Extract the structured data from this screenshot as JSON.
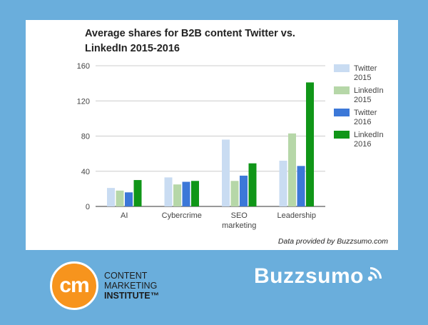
{
  "chart_data": {
    "type": "bar",
    "title": "Average shares for B2B content Twitter vs. LinkedIn 2015-2016",
    "title_lines": [
      "Average shares for B2B content Twitter vs.",
      "LinkedIn 2015-2016"
    ],
    "categories": [
      "AI",
      "Cybercrime",
      "SEO marketing",
      "Leadership"
    ],
    "category_lines": [
      [
        "AI"
      ],
      [
        "Cybercrime"
      ],
      [
        "SEO",
        "marketing"
      ],
      [
        "Leadership"
      ]
    ],
    "series": [
      {
        "name": "Twitter 2015",
        "name_lines": [
          "Twitter",
          "2015"
        ],
        "color": "#c9dcf2",
        "values": [
          21,
          33,
          76,
          52
        ]
      },
      {
        "name": "LinkedIn 2015",
        "name_lines": [
          "LinkedIn",
          "2015"
        ],
        "color": "#b6d7a8",
        "values": [
          18,
          25,
          29,
          83
        ]
      },
      {
        "name": "Twitter 2016",
        "name_lines": [
          "Twitter",
          "2016"
        ],
        "color": "#3c78d8",
        "values": [
          16,
          28,
          35,
          46
        ]
      },
      {
        "name": "LinkedIn 2016",
        "name_lines": [
          "LinkedIn",
          "2016"
        ],
        "color": "#109618",
        "values": [
          30,
          29,
          49,
          141
        ]
      }
    ],
    "ylim": [
      0,
      160
    ],
    "yticks": [
      0,
      40,
      80,
      120,
      160
    ],
    "xlabel": "",
    "ylabel": "",
    "grid": true,
    "legend": "right"
  },
  "credit": "Data provided by Buzzsumo.com",
  "logos": {
    "cmi_mark": "cm",
    "cmi_lines": [
      "CONTENT",
      "MARKETING",
      "INSTITUTE™"
    ],
    "buzzsumo": "Buzzsumo",
    "buzzsumo_icon": "signal-waves-icon"
  }
}
